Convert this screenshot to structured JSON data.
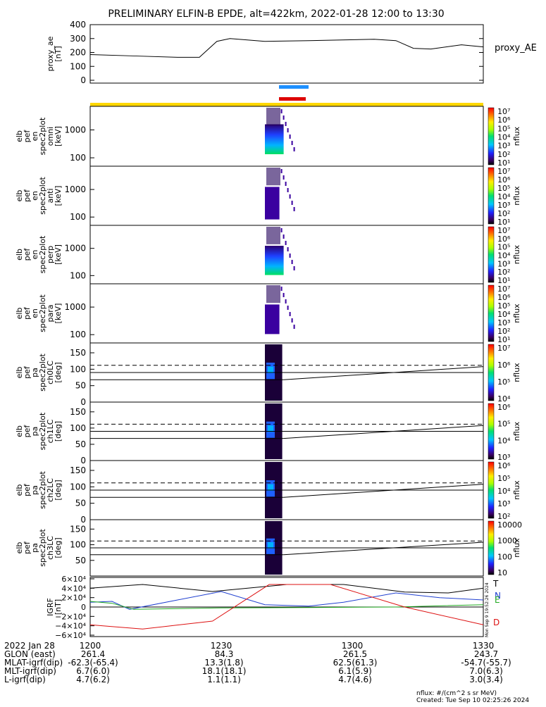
{
  "title": "PRELIMINARY ELFIN-B EPDE, alt=422km, 2022-01-28 12:00 to 13:30",
  "panels": {
    "ae": {
      "ylabel": [
        "proxy_ae",
        "[nT]"
      ],
      "legend": "proxy_AE",
      "yticks": [
        "400",
        "300",
        "200",
        "100",
        "0"
      ]
    },
    "spec": [
      {
        "ylabel": [
          "elb",
          "pef",
          "en",
          "spec2plot",
          "omni",
          "[keV]"
        ],
        "yticks": [
          "1000",
          "100"
        ]
      },
      {
        "ylabel": [
          "elb",
          "pef",
          "en",
          "spec2plot",
          "anti",
          "[keV]"
        ],
        "yticks": [
          "1000",
          "100"
        ]
      },
      {
        "ylabel": [
          "elb",
          "pef",
          "en",
          "spec2plot",
          "perp",
          "[keV]"
        ],
        "yticks": [
          "1000",
          "100"
        ]
      },
      {
        "ylabel": [
          "elb",
          "pef",
          "en",
          "spec2plot",
          "para",
          "[keV]"
        ],
        "yticks": [
          "1000",
          "100"
        ]
      }
    ],
    "pa": [
      {
        "ylabel": [
          "elb",
          "pef",
          "pa",
          "spec2plot",
          "ch0LC",
          "[deg]"
        ],
        "yticks": [
          "150",
          "100",
          "50",
          "0"
        ]
      },
      {
        "ylabel": [
          "elb",
          "pef",
          "pa",
          "spec2plot",
          "ch1LC",
          "[deg]"
        ],
        "yticks": [
          "150",
          "100",
          "50",
          "0"
        ]
      },
      {
        "ylabel": [
          "elb",
          "pef",
          "pa",
          "spec2plot",
          "ch2LC",
          "[deg]"
        ],
        "yticks": [
          "150",
          "100",
          "50",
          "0"
        ]
      },
      {
        "ylabel": [
          "elb",
          "pef",
          "pa",
          "spec2plot",
          "ch3LC",
          "[deg]"
        ],
        "yticks": [
          "150",
          "100",
          "50"
        ]
      }
    ],
    "igrf": {
      "ylabel": [
        "IGRF",
        "[nT]"
      ],
      "yticks": [
        "6×10⁴",
        "4×10⁴",
        "2×10⁴",
        "0",
        "−2×10⁴",
        "−4×10⁴",
        "−6×10⁴"
      ],
      "legend": [
        "T",
        "N",
        "E",
        "D"
      ]
    }
  },
  "colorbars": [
    {
      "label": "nflux",
      "ticks": [
        "10⁷",
        "10⁶",
        "10⁵",
        "10⁴",
        "10³",
        "10²",
        "10¹"
      ]
    },
    {
      "label": "nflux",
      "ticks": [
        "10⁷",
        "10⁶",
        "10⁵",
        "10⁴",
        "10³",
        "10²",
        "10¹"
      ]
    },
    {
      "label": "nflux",
      "ticks": [
        "10⁷",
        "10⁶",
        "10⁵",
        "10⁴",
        "10³",
        "10²",
        "10¹"
      ]
    },
    {
      "label": "nflux",
      "ticks": [
        "10⁷",
        "10⁶",
        "10⁵",
        "10⁴",
        "10³",
        "10²",
        "10¹"
      ]
    },
    {
      "label": "nflux",
      "ticks": [
        "10⁷",
        "10⁶",
        "10⁵",
        "10⁴"
      ]
    },
    {
      "label": "nflux",
      "ticks": [
        "10⁶",
        "10⁵",
        "10⁴",
        "10³"
      ]
    },
    {
      "label": "nflux",
      "ticks": [
        "10⁶",
        "10⁵",
        "10⁴",
        "10³",
        "10²"
      ]
    },
    {
      "label": "nflux",
      "ticks": [
        "10000",
        "1000",
        "100",
        "10"
      ]
    }
  ],
  "colors": {
    "science_zone": "#ffd700",
    "bar_blue": "#1e90ff",
    "bar_red": "#dd0000",
    "T": "#000000",
    "N": "#1f3fd0",
    "E": "#22aa22",
    "D": "#dd1111"
  },
  "bottom": {
    "date": "2022 Jan 28",
    "rows": [
      {
        "name": "GLON (east)",
        "values": [
          "261.4",
          "84.3",
          "261.5",
          "243.7"
        ]
      },
      {
        "name": "MLAT-igrf(dip)",
        "values": [
          "-62.3(-65.4)",
          "13.3(1.8)",
          "62.5(61.3)",
          "-54.7(-55.7)"
        ]
      },
      {
        "name": "MLT-igrf(dip)",
        "values": [
          "6.7(6.0)",
          "18.1(18.1)",
          "6.1(5.9)",
          "7.0(6.3)"
        ]
      },
      {
        "name": "L-igrf(dip)",
        "values": [
          "4.7(6.2)",
          "1.1(1.1)",
          "4.7(4.6)",
          "3.0(3.4)"
        ]
      }
    ],
    "time_labels": [
      "1200",
      "1230",
      "1300",
      "1330"
    ],
    "units_note": "nflux: #/(cm^2 s sr MeV)",
    "created": "Created: Tue Sep 10 02:25:26 2024",
    "side_stamp": "Mon Sep 9 19:52:26 2024"
  },
  "chart_data": [
    {
      "type": "line",
      "name": "proxy_AE",
      "x": [
        "12:00",
        "12:10",
        "12:20",
        "12:25",
        "12:29",
        "12:32",
        "12:40",
        "12:50",
        "13:05",
        "13:10",
        "13:14",
        "13:18",
        "13:25",
        "13:30"
      ],
      "y": [
        185,
        175,
        165,
        165,
        280,
        300,
        280,
        285,
        295,
        285,
        230,
        225,
        255,
        240
      ],
      "ylim": [
        0,
        400
      ]
    },
    {
      "type": "line",
      "name": "IGRF components",
      "x_range": [
        "12:00",
        "13:30"
      ],
      "ylim": [
        -60000,
        60000
      ],
      "series": [
        {
          "name": "T",
          "x": [
            "12:00",
            "12:12",
            "12:28",
            "12:45",
            "12:58",
            "13:12",
            "13:22",
            "13:30"
          ],
          "y": [
            40000,
            48000,
            33000,
            48000,
            48000,
            32000,
            30000,
            40000
          ]
        },
        {
          "name": "N",
          "x": [
            "12:00",
            "12:05",
            "12:09",
            "12:20",
            "12:30",
            "12:40",
            "12:50",
            "12:58",
            "13:10",
            "13:20",
            "13:30"
          ],
          "y": [
            10000,
            12000,
            -5000,
            15000,
            33000,
            5000,
            2000,
            10000,
            30000,
            20000,
            15000
          ]
        },
        {
          "name": "E",
          "x": [
            "12:00",
            "12:05",
            "12:10",
            "12:30",
            "12:50",
            "13:10",
            "13:30"
          ],
          "y": [
            12000,
            8000,
            -5000,
            -2000,
            -1000,
            0,
            5000
          ]
        },
        {
          "name": "D",
          "x": [
            "12:00",
            "12:12",
            "12:28",
            "12:41",
            "12:55",
            "13:12",
            "13:30"
          ],
          "y": [
            -38000,
            -47000,
            -30000,
            48000,
            48000,
            0,
            -38000
          ]
        }
      ]
    },
    {
      "type": "heatmap",
      "name": "pef energy spectrograms",
      "x_range": [
        "12:00",
        "13:30"
      ],
      "y_range_keV": [
        50,
        7000
      ],
      "event_time": [
        "12:40",
        "12:43"
      ]
    },
    {
      "type": "heatmap",
      "name": "pef pitch angle spectrograms",
      "x_range": [
        "12:00",
        "13:30"
      ],
      "y_range_deg": [
        0,
        180
      ],
      "event_time": [
        "12:40",
        "12:43"
      ]
    }
  ]
}
